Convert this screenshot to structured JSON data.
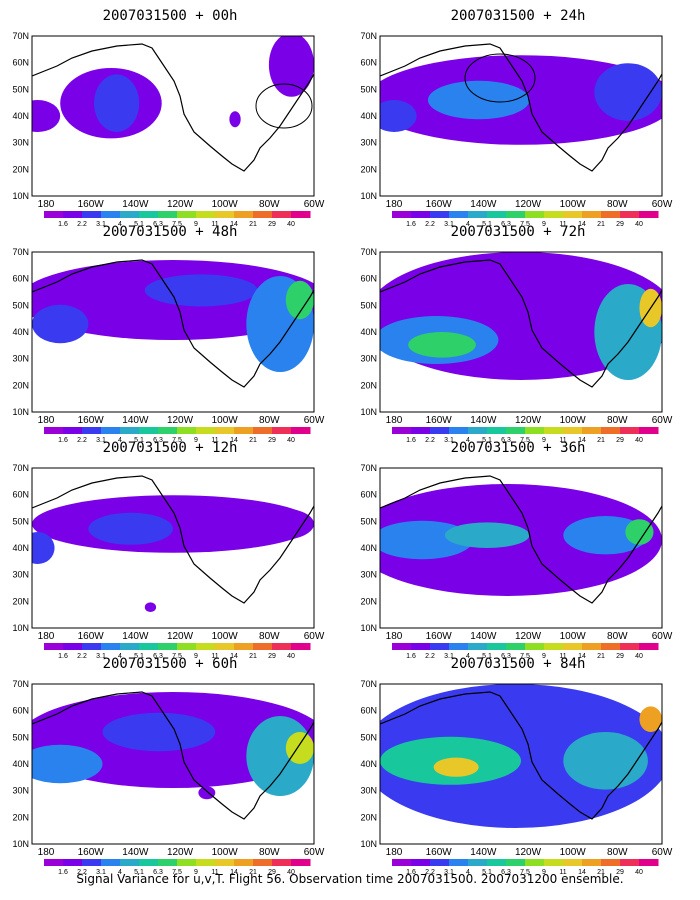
{
  "footer": "Signal Variance for u,v,T. Flight 56. Observation time 2007031500. 2007031200 ensemble.",
  "x_ticks": [
    "180",
    "160W",
    "140W",
    "120W",
    "100W",
    "80W",
    "60W"
  ],
  "y_ticks": [
    "70N",
    "60N",
    "50N",
    "40N",
    "30N",
    "20N",
    "10N"
  ],
  "colorbar": {
    "labels": [
      "1.6",
      "2.2",
      "3.1",
      "4",
      "5.1",
      "6.3",
      "7.5",
      "9",
      "11",
      "14",
      "21",
      "29",
      "40"
    ],
    "colors": [
      "#9a00d8",
      "#7a00e8",
      "#3a3af0",
      "#2a82ef",
      "#2aa9c8",
      "#19c79c",
      "#2ed06a",
      "#8ede24",
      "#c6dc1e",
      "#e8c829",
      "#eea022",
      "#ee6d28",
      "#ee2f57",
      "#e0008c"
    ]
  },
  "panels": [
    {
      "title": "2007031500 + 00h"
    },
    {
      "title": "2007031500 + 48h"
    },
    {
      "title": "2007031500 + 12h"
    },
    {
      "title": "2007031500 + 60h"
    },
    {
      "title": "2007031500 + 24h"
    },
    {
      "title": "2007031500 + 72h"
    },
    {
      "title": "2007031500 + 36h"
    },
    {
      "title": "2007031500 + 84h"
    }
  ]
}
